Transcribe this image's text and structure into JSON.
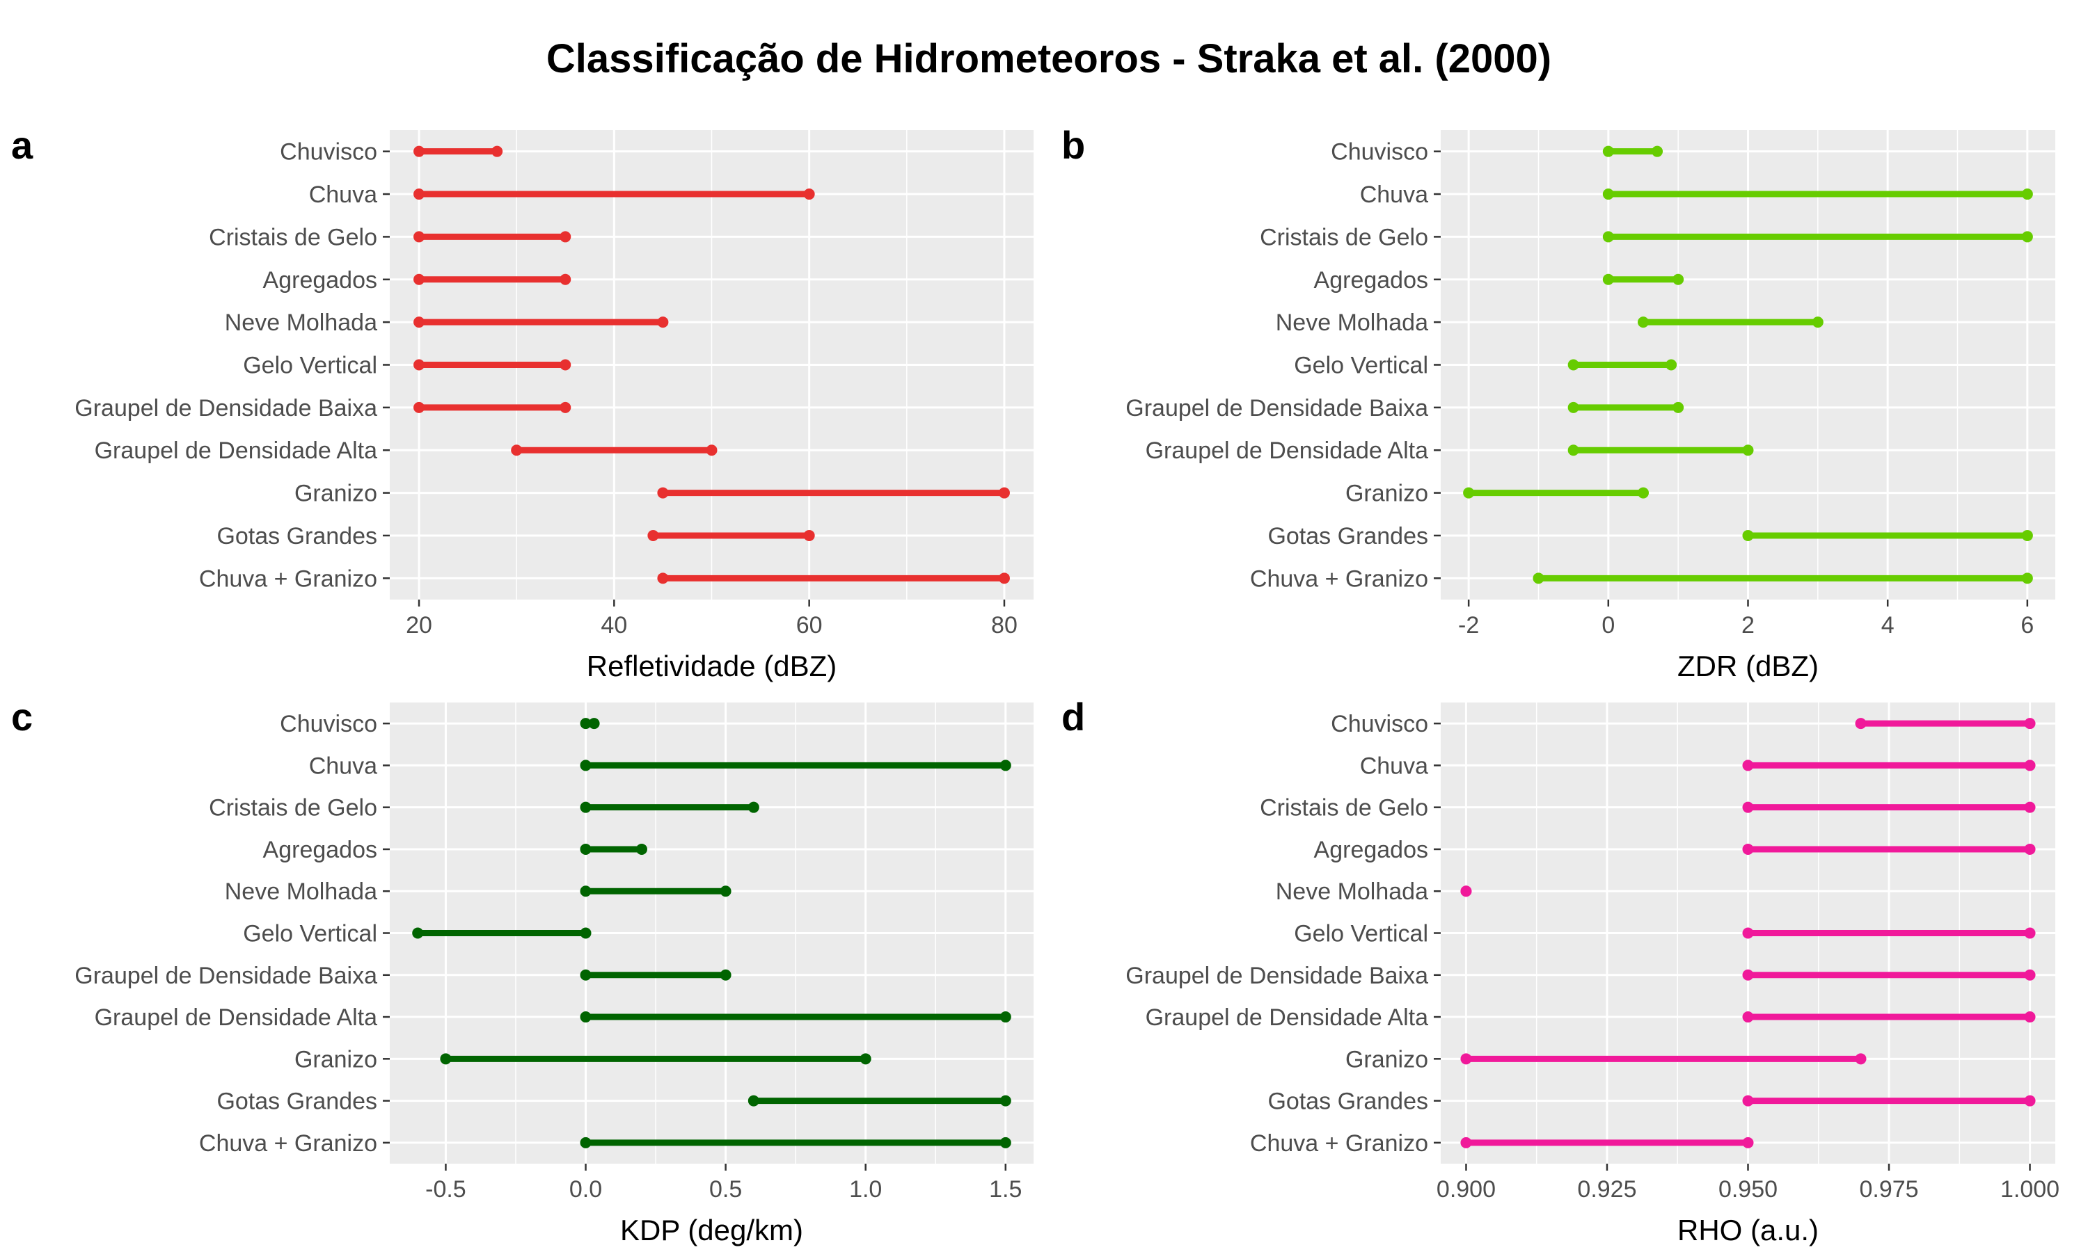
{
  "title": "Classificação de Hidrometeoros - Straka et al. (2000)",
  "categories": [
    "Chuvisco",
    "Chuva",
    "Cristais de Gelo",
    "Agregados",
    "Neve Molhada",
    "Gelo Vertical",
    "Graupel de Densidade Baixa",
    "Graupel de Densidade Alta",
    "Granizo",
    "Gotas Grandes",
    "Chuva + Granizo"
  ],
  "chart_data": [
    {
      "type": "dumbbell",
      "panel": "a",
      "xlabel": "Refletividade (dBZ)",
      "color": "#E8302F",
      "xlim": [
        17,
        83
      ],
      "ticks": [
        20,
        40,
        60,
        80
      ],
      "tick_labels": [
        "20",
        "40",
        "60",
        "80"
      ],
      "ranges": [
        [
          20,
          28
        ],
        [
          20,
          60
        ],
        [
          20,
          35
        ],
        [
          20,
          35
        ],
        [
          20,
          45
        ],
        [
          20,
          35
        ],
        [
          20,
          35
        ],
        [
          30,
          50
        ],
        [
          45,
          80
        ],
        [
          44,
          60
        ],
        [
          45,
          80
        ]
      ]
    },
    {
      "type": "dumbbell",
      "panel": "b",
      "xlabel": "ZDR (dBZ)",
      "color": "#66CC00",
      "xlim": [
        -2.4,
        6.4
      ],
      "ticks": [
        -2,
        0,
        2,
        4,
        6
      ],
      "tick_labels": [
        "-2",
        "0",
        "2",
        "4",
        "6"
      ],
      "ranges": [
        [
          0,
          0.7
        ],
        [
          0,
          6
        ],
        [
          0,
          6
        ],
        [
          0,
          1
        ],
        [
          0.5,
          3
        ],
        [
          -0.5,
          0.9
        ],
        [
          -0.5,
          1
        ],
        [
          -0.5,
          2
        ],
        [
          -2,
          0.5
        ],
        [
          2,
          6
        ],
        [
          -1,
          6
        ]
      ]
    },
    {
      "type": "dumbbell",
      "panel": "c",
      "xlabel": "KDP (deg/km)",
      "color": "#006400",
      "xlim": [
        -0.7,
        1.6
      ],
      "ticks": [
        -0.5,
        0,
        0.5,
        1,
        1.5
      ],
      "tick_labels": [
        "-0.5",
        "0.0",
        "0.5",
        "1.0",
        "1.5"
      ],
      "ranges": [
        [
          0,
          0.03
        ],
        [
          0,
          1.5
        ],
        [
          0,
          0.6
        ],
        [
          0,
          0.2
        ],
        [
          0,
          0.5
        ],
        [
          -0.6,
          0
        ],
        [
          0,
          0.5
        ],
        [
          0,
          1.5
        ],
        [
          -0.5,
          1
        ],
        [
          0.6,
          1.5
        ],
        [
          0,
          1.5
        ]
      ]
    },
    {
      "type": "dumbbell",
      "panel": "d",
      "xlabel": "RHO (a.u.)",
      "color": "#F0199A",
      "xlim": [
        0.8955,
        1.0045
      ],
      "ticks": [
        0.9,
        0.925,
        0.95,
        0.975,
        1.0
      ],
      "tick_labels": [
        "0.900",
        "0.925",
        "0.950",
        "0.975",
        "1.000"
      ],
      "ranges": [
        [
          0.97,
          1.0
        ],
        [
          0.95,
          1.0
        ],
        [
          0.95,
          1.0
        ],
        [
          0.95,
          1.0
        ],
        [
          0.9,
          0.9
        ],
        [
          0.95,
          1.0
        ],
        [
          0.95,
          1.0
        ],
        [
          0.95,
          1.0
        ],
        [
          0.9,
          0.97
        ],
        [
          0.95,
          1.0
        ],
        [
          0.9,
          0.95
        ]
      ]
    }
  ]
}
